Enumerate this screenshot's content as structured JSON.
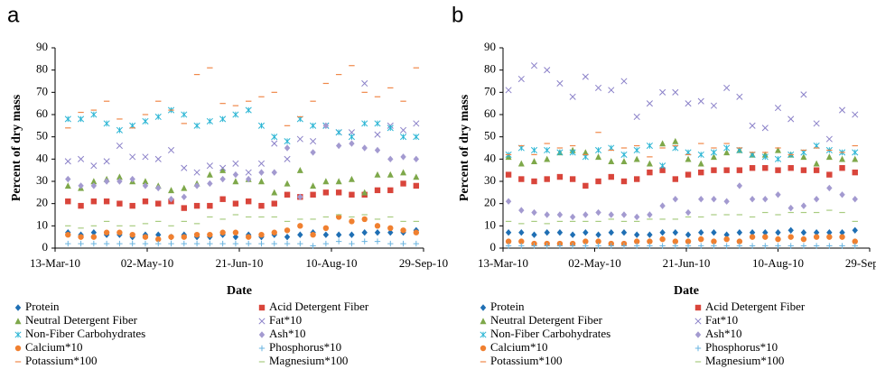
{
  "chart_data": [
    {
      "type": "scatter",
      "title": "a",
      "x_label": "Date",
      "y_label": "Percent of dry mass",
      "x": [
        "20-Mar-10",
        "27-Mar-10",
        "03-Apr-10",
        "10-Apr-10",
        "17-Apr-10",
        "24-Apr-10",
        "01-May-10",
        "08-May-10",
        "15-May-10",
        "22-May-10",
        "29-May-10",
        "05-Jun-10",
        "12-Jun-10",
        "19-Jun-10",
        "26-Jun-10",
        "03-Jul-10",
        "10-Jul-10",
        "17-Jul-10",
        "24-Jul-10",
        "31-Jul-10",
        "07-Aug-10",
        "14-Aug-10",
        "21-Aug-10",
        "28-Aug-10",
        "04-Sep-10",
        "11-Sep-10",
        "18-Sep-10",
        "25-Sep-10"
      ],
      "xlim": [
        "13-Mar-10",
        "29-Sep-10"
      ],
      "xticks": [
        "13-Mar-10",
        "02-May-10",
        "21-Jun-10",
        "10-Aug-10",
        "29-Sep-10"
      ],
      "ylim": [
        0,
        90
      ],
      "yticks": [
        0,
        10,
        20,
        30,
        40,
        50,
        60,
        70,
        80,
        90
      ],
      "series": [
        {
          "name": "Protein",
          "color": "#1f6fb4",
          "marker": "diamond",
          "values": [
            7,
            6,
            7,
            6,
            6,
            5,
            6,
            6,
            5,
            6,
            5,
            5,
            6,
            5,
            6,
            5,
            6,
            5,
            6,
            7,
            6,
            6,
            6,
            7,
            7,
            7,
            7,
            8
          ]
        },
        {
          "name": "Acid Detergent Fiber",
          "color": "#d9453b",
          "marker": "square",
          "values": [
            21,
            19,
            21,
            21,
            20,
            19,
            21,
            20,
            21,
            18,
            19,
            19,
            22,
            20,
            21,
            19,
            20,
            24,
            23,
            24,
            25,
            25,
            24,
            24,
            26,
            26,
            29,
            28
          ]
        },
        {
          "name": "Neutral Detergent Fiber",
          "color": "#7ea84a",
          "marker": "triangle",
          "values": [
            28,
            27,
            30,
            31,
            32,
            30,
            30,
            28,
            26,
            27,
            29,
            33,
            35,
            30,
            31,
            30,
            25,
            29,
            35,
            28,
            30,
            30,
            31,
            25,
            33,
            33,
            34,
            32
          ]
        },
        {
          "name": "Fat*10",
          "color": "#8a80c8",
          "marker": "x",
          "values": [
            39,
            40,
            37,
            39,
            46,
            41,
            41,
            40,
            44,
            36,
            34,
            37,
            36,
            38,
            34,
            38,
            47,
            40,
            49,
            48,
            55,
            52,
            52,
            74,
            51,
            55,
            53,
            56
          ]
        },
        {
          "name": "Non-Fiber Carbohydrates",
          "color": "#2ab5d4",
          "marker": "star",
          "values": [
            58,
            58,
            60,
            56,
            53,
            55,
            57,
            59,
            62,
            60,
            55,
            57,
            58,
            60,
            62,
            55,
            50,
            48,
            58,
            55,
            55,
            52,
            50,
            56,
            56,
            54,
            50,
            50
          ]
        },
        {
          "name": "Ash*10",
          "color": "#a39ad0",
          "marker": "diamond",
          "values": [
            31,
            28,
            28,
            30,
            30,
            31,
            28,
            27,
            22,
            23,
            28,
            29,
            31,
            33,
            31,
            34,
            34,
            45,
            23,
            43,
            55,
            46,
            47,
            45,
            44,
            40,
            41,
            40
          ]
        },
        {
          "name": "Calcium*10",
          "color": "#f08030",
          "marker": "circle",
          "values": [
            6,
            5,
            5,
            7,
            7,
            6,
            5,
            4,
            5,
            5,
            6,
            6,
            7,
            7,
            5,
            6,
            7,
            8,
            10,
            6,
            9,
            14,
            12,
            13,
            10,
            9,
            8,
            7
          ]
        },
        {
          "name": "Phosphorus*10",
          "color": "#69b4e0",
          "marker": "plus",
          "values": [
            2,
            2,
            2,
            2,
            2,
            2,
            2,
            2,
            2,
            2,
            2,
            2,
            2,
            2,
            2,
            2,
            2,
            2,
            2,
            1,
            2,
            3,
            2,
            3,
            3,
            2,
            2,
            2
          ]
        },
        {
          "name": "Potassium*100",
          "color": "#f0884a",
          "marker": "dash",
          "values": [
            54,
            61,
            62,
            66,
            58,
            54,
            60,
            66,
            62,
            56,
            78,
            81,
            65,
            64,
            66,
            68,
            70,
            55,
            59,
            66,
            74,
            78,
            82,
            70,
            68,
            72,
            66,
            81
          ]
        },
        {
          "name": "Magnesium*100",
          "color": "#a8cc80",
          "marker": "dash",
          "values": [
            10,
            9,
            10,
            12,
            10,
            10,
            11,
            12,
            10,
            12,
            11,
            14,
            13,
            15,
            14,
            14,
            14,
            12,
            13,
            13,
            14,
            15,
            14,
            15,
            13,
            14,
            12,
            12
          ]
        }
      ]
    },
    {
      "type": "scatter",
      "title": "b",
      "x_label": "Date",
      "y_label": "Percent of dry mass",
      "x": [
        "16-Mar-10",
        "23-Mar-10",
        "30-Mar-10",
        "06-Apr-10",
        "13-Apr-10",
        "20-Apr-10",
        "27-Apr-10",
        "04-May-10",
        "11-May-10",
        "18-May-10",
        "25-May-10",
        "01-Jun-10",
        "08-Jun-10",
        "15-Jun-10",
        "22-Jun-10",
        "29-Jun-10",
        "06-Jul-10",
        "13-Jul-10",
        "20-Jul-10",
        "27-Jul-10",
        "03-Aug-10",
        "10-Aug-10",
        "17-Aug-10",
        "24-Aug-10",
        "31-Aug-10",
        "07-Sep-10",
        "14-Sep-10",
        "21-Sep-10"
      ],
      "xlim": [
        "13-Mar-10",
        "29-Sep-10"
      ],
      "xticks": [
        "13-Mar-10",
        "02-May-10",
        "21-Jun-10",
        "10-Aug-10",
        "29-Sep-10"
      ],
      "ylim": [
        0,
        90
      ],
      "yticks": [
        0,
        10,
        20,
        30,
        40,
        50,
        60,
        70,
        80,
        90
      ],
      "series": [
        {
          "name": "Protein",
          "color": "#1f6fb4",
          "marker": "diamond",
          "values": [
            7,
            7,
            6,
            7,
            7,
            6,
            7,
            6,
            7,
            7,
            6,
            6,
            7,
            7,
            6,
            7,
            7,
            6,
            7,
            7,
            7,
            7,
            8,
            7,
            7,
            7,
            7,
            8
          ]
        },
        {
          "name": "Acid Detergent Fiber",
          "color": "#d9453b",
          "marker": "square",
          "values": [
            33,
            31,
            30,
            31,
            32,
            31,
            28,
            30,
            32,
            30,
            31,
            34,
            35,
            31,
            33,
            34,
            35,
            35,
            35,
            36,
            36,
            35,
            36,
            35,
            35,
            33,
            36,
            34
          ]
        },
        {
          "name": "Neutral Detergent Fiber",
          "color": "#7ea84a",
          "marker": "triangle",
          "values": [
            41,
            38,
            39,
            40,
            43,
            44,
            43,
            41,
            39,
            39,
            40,
            38,
            47,
            48,
            40,
            38,
            41,
            43,
            44,
            42,
            42,
            44,
            42,
            41,
            38,
            41,
            40,
            40
          ]
        },
        {
          "name": "Fat*10",
          "color": "#8a80c8",
          "marker": "x",
          "values": [
            71,
            76,
            82,
            80,
            74,
            68,
            77,
            72,
            71,
            75,
            59,
            65,
            70,
            70,
            65,
            66,
            64,
            72,
            68,
            55,
            54,
            63,
            58,
            69,
            56,
            49,
            62,
            60
          ]
        },
        {
          "name": "Non-Fiber Carbohydrates",
          "color": "#2ab5d4",
          "marker": "star",
          "values": [
            42,
            45,
            44,
            44,
            43,
            43,
            41,
            44,
            45,
            42,
            44,
            46,
            37,
            45,
            43,
            42,
            43,
            45,
            44,
            42,
            41,
            40,
            42,
            43,
            46,
            44,
            43,
            43
          ]
        },
        {
          "name": "Ash*10",
          "color": "#a39ad0",
          "marker": "diamond",
          "values": [
            21,
            17,
            16,
            15,
            15,
            14,
            15,
            16,
            15,
            15,
            14,
            15,
            19,
            22,
            16,
            22,
            22,
            21,
            28,
            22,
            22,
            24,
            18,
            19,
            22,
            27,
            24,
            22
          ]
        },
        {
          "name": "Calcium*10",
          "color": "#f08030",
          "marker": "circle",
          "values": [
            3,
            3,
            2,
            2,
            2,
            2,
            3,
            3,
            2,
            2,
            3,
            3,
            4,
            3,
            3,
            4,
            3,
            4,
            3,
            5,
            5,
            4,
            5,
            4,
            5,
            5,
            5,
            3
          ]
        },
        {
          "name": "Phosphorus*10",
          "color": "#69b4e0",
          "marker": "plus",
          "values": [
            1,
            1,
            1,
            1,
            1,
            1,
            1,
            1,
            1,
            1,
            1,
            1,
            1,
            1,
            1,
            1,
            1,
            1,
            1,
            1,
            1,
            1,
            1,
            1,
            1,
            1,
            1,
            1
          ]
        },
        {
          "name": "Potassium*100",
          "color": "#f0884a",
          "marker": "dash",
          "values": [
            42,
            46,
            42,
            47,
            45,
            46,
            42,
            52,
            44,
            45,
            46,
            41,
            45,
            46,
            42,
            47,
            45,
            47,
            45,
            43,
            43,
            45,
            42,
            44,
            45,
            44,
            43,
            46
          ]
        },
        {
          "name": "Magnesium*100",
          "color": "#a8cc80",
          "marker": "dash",
          "values": [
            12,
            11,
            12,
            11,
            12,
            12,
            12,
            12,
            13,
            12,
            12,
            13,
            13,
            13,
            14,
            14,
            15,
            15,
            15,
            14,
            16,
            15,
            16,
            16,
            16,
            17,
            16,
            12
          ]
        }
      ]
    }
  ]
}
